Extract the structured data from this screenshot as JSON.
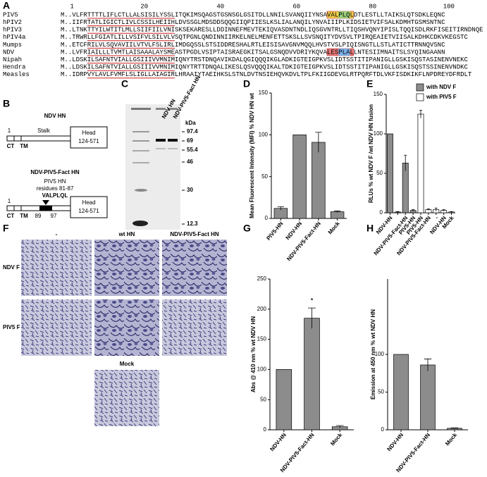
{
  "panel_letters": [
    "A",
    "B",
    "C",
    "D",
    "E",
    "F",
    "G",
    "H"
  ],
  "alignment": {
    "ruler": [
      "1",
      "20",
      "40",
      "60",
      "80",
      "100"
    ],
    "rows": [
      {
        "name": "PIV5",
        "sequence": "M..VLFRTTTTLIFLCTLLALSISILYSSLITQKIMSQAGSTGSNSGLGSITDLLNNILSVANQIIYNSAVALPLQLDTLESTLLTAIKSLQTSDKLEQNC"
      },
      {
        "name": "hPIV2",
        "sequence": "M..IIFRTATLIGICTLIVLCSSILHEIIHLDVSSGLMDSDDSQQGIIQPIIESLKSLIALANQILYNVAIIIPLKIDSIETVIFSALKDMHTGSMSNTNC"
      },
      {
        "name": "hPIV3",
        "sequence": "M..LTNKTTYILWTITLMLLSIIFIILVNISKSEKARESLLDDINNEFMEVTEKIQVASDNTNDLIQSGVNTRLLTIQSHVQNYIPISLTQQISDLRKFISEITIRNDNQE"
      },
      {
        "name": "hPIV4a",
        "sequence": "M..TRWRLLFGIATLILLVSIFVLSILVLVSQTPGNLQNDINNIIRKELNELMENFETTSKSLLSVSNQITYDVSVLTPIRQEAIETVIISALKDHKCDKVKEGSTC"
      },
      {
        "name": "Mumps",
        "sequence": "M..ETCFRILVLSQVAVIILVTVLFSLIRLIMDGQSSLSTSIDDRESHALRTLEISISAVGNVMQQLHVSTVSLPIQISNGTLLSTLATICTTRNNQVSNC"
      },
      {
        "name": "NDV",
        "sequence": "M..LVFRIAILLLTVMTLAISAAALAYSMEASTPGDLVSIPTAISRAEGKITSALGSNQDVVDRIYKQVALESPLALLNTESIIMNAITSLSYQINGAANN"
      },
      {
        "name": "Nipah",
        "sequence": "M..LDSKILSAFNTVIALLGSIIIVVMNIMIQNYTRSTDNQAVIKDALQGIQQQIKGLADKIGTEIGPKVSLIDTSSTITIPANIGLLGSKISQSTASINENVNEKC"
      },
      {
        "name": "Hendra",
        "sequence": "M..LDSKILSAFNTVIALLGSIIIVVMNIMIQNYTRTTDNQALIKESLQSVQQQIKALTDKIGTEIGPKVSLIDTSSTITIPANIGLLGSKISQSTSSINENVNDKC"
      },
      {
        "name": "Measles",
        "sequence": "M..IDRPVYLAVLFVMFLSLIGLLAIAGIRLHRAAIYTAEIHKSLSTNLDVTNSIEHQVKDVLTPLFKIIGDEVGLRTPQRFTDLVKFISDKIKFLNPDREYDFRDLT"
      }
    ]
  },
  "diagram": {
    "wt_title": "NDV HN",
    "start": "1",
    "stalk": "Stalk",
    "head_label": "Head",
    "head_range": "124-571",
    "ct": "CT",
    "tm": "TM",
    "chimera_title": "NDV-PIV5-Fact HN",
    "insert_source": "PIV5 HN",
    "insert_residues": "residues 81-87",
    "motif": "VALPLQL",
    "insert_start": "89",
    "insert_end": "97"
  },
  "gel": {
    "lanes": [
      "NDV HN",
      "NDV-PIV5-Fact HN"
    ],
    "unit": "kDa",
    "markers": [
      "97.4",
      "69",
      "55.4",
      "46",
      "30",
      "12.3"
    ]
  },
  "micrographs": {
    "columns": [
      "-",
      "wt HN",
      "NDV-PIV5-Fact HN"
    ],
    "rows": [
      "NDV F",
      "PIV5 F"
    ],
    "extra": "Mock"
  },
  "chart_data": [
    {
      "type": "bar",
      "y_label": "Mean Fluorescent Intensity (MFI) % NDV HN wt",
      "categories": [
        "PIV5-HN",
        "NDV-HN",
        "NDV-PIV5-Fact-HN",
        "Mock"
      ],
      "values": [
        12,
        100,
        91,
        8
      ],
      "errors": [
        2,
        null,
        12,
        1
      ],
      "color": "#8c8c8c",
      "ylim": [
        0,
        150
      ],
      "yticks": [
        0,
        50,
        100,
        150
      ]
    },
    {
      "type": "bar",
      "y_label": "RLUs % wt NDV F /wt NDV HN fusion",
      "categories": [
        "NDV-HN",
        null,
        "NDV-PIV5-Fact-HN",
        "PIV5-HN",
        "PIV5-HN",
        "NDV-PIV5-Fact-HN",
        "-",
        "NDV-HN",
        "Mock"
      ],
      "series": [
        {
          "name": "with NDV F",
          "color": "#8c8c8c",
          "values": [
            100,
            1,
            63,
            3,
            null,
            null,
            null,
            null,
            null
          ],
          "errors": [
            null,
            0.5,
            10,
            1,
            null,
            null,
            null,
            null,
            null
          ]
        },
        {
          "name": "with PIV5 F",
          "color": "#ffffff",
          "values": [
            null,
            null,
            null,
            null,
            125,
            4,
            4,
            3,
            1
          ],
          "errors": [
            null,
            null,
            null,
            null,
            5,
            1,
            2,
            1,
            0.5
          ]
        }
      ],
      "legend": "top-right",
      "ylim": [
        0,
        150
      ],
      "yticks": [
        0,
        50,
        100,
        150
      ]
    },
    {
      "type": "bar",
      "y_label": "Abs @ 410 nm % wt NDV HN",
      "categories": [
        "NDV-HN",
        "NDV-PIV5-Fact-HN",
        "Mock"
      ],
      "values": [
        100,
        185,
        5
      ],
      "errors": [
        null,
        17,
        2
      ],
      "annotation": "*",
      "color": "#8c8c8c",
      "ylim": [
        0,
        250
      ],
      "yticks": [
        0,
        50,
        100,
        150,
        200,
        250
      ]
    },
    {
      "type": "bar",
      "y_label": "Emission at 450 nm % wt NDV HN",
      "categories": [
        "NDV-HN",
        "NDV-PIV5-Fact-HN",
        "Mock"
      ],
      "values": [
        100,
        86,
        2
      ],
      "errors": [
        null,
        8,
        0.5
      ],
      "color": "#8c8c8c",
      "ylim": [
        0,
        200
      ],
      "yticks": [
        0,
        50,
        100
      ]
    }
  ]
}
